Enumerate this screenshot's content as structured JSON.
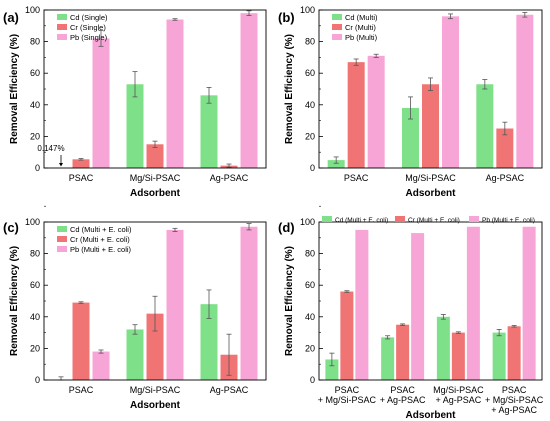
{
  "colors": {
    "cd": "#7fe08a",
    "cr": "#f07474",
    "pb": "#f7a5d6",
    "error": "#555555"
  },
  "chart_data": [
    {
      "panel": "(a)",
      "type": "bar",
      "xlabel": "Adsorbent",
      "ylabel": "Removal Efficiency (%)",
      "ylim": [
        0,
        100
      ],
      "yticks": [
        "0",
        "20",
        "40",
        "60",
        "80",
        "100"
      ],
      "categories": [
        "PSAC",
        "Mg/Si-PSAC",
        "Ag-PSAC"
      ],
      "series": [
        {
          "name": "Cd (Single)",
          "values": [
            0.147,
            53,
            46
          ],
          "errors": [
            0,
            8,
            5
          ]
        },
        {
          "name": "Cr (Single)",
          "values": [
            5.5,
            15,
            1.5
          ],
          "errors": [
            0.5,
            2,
            1
          ]
        },
        {
          "name": "Pb (Single)",
          "values": [
            82,
            94,
            98
          ],
          "errors": [
            5,
            0.5,
            1.5
          ]
        }
      ],
      "annotation": "0.147%"
    },
    {
      "panel": "(b)",
      "type": "bar",
      "xlabel": "Adsorbent",
      "ylabel": "Removal Efficiency (%)",
      "ylim": [
        0,
        100
      ],
      "yticks": [
        "0",
        "20",
        "40",
        "60",
        "80",
        "100"
      ],
      "categories": [
        "PSAC",
        "Mg/Si-PSAC",
        "Ag-PSAC"
      ],
      "series": [
        {
          "name": "Cd (Multi)",
          "values": [
            5,
            38,
            53
          ],
          "errors": [
            2,
            7,
            3
          ]
        },
        {
          "name": "Cr (Multi)",
          "values": [
            67,
            53,
            25
          ],
          "errors": [
            2,
            4,
            4
          ]
        },
        {
          "name": "Pb (Multi)",
          "values": [
            71,
            96,
            97
          ],
          "errors": [
            1,
            1.5,
            1.5
          ]
        }
      ]
    },
    {
      "panel": "(c)",
      "type": "bar",
      "xlabel": "Adsorbent",
      "ylabel": "Removal Efficiency (%)",
      "ylim": [
        0,
        100
      ],
      "yticks": [
        "0",
        "20",
        "40",
        "60",
        "80",
        "100"
      ],
      "categories": [
        "PSAC",
        "Mg/Si-PSAC",
        "Ag-PSAC"
      ],
      "series": [
        {
          "name": "Cd (Multi + E. coli)",
          "values": [
            0,
            32,
            48
          ],
          "errors": [
            2,
            3,
            9
          ]
        },
        {
          "name": "Cr (Multi + E. coli)",
          "values": [
            49,
            42,
            16
          ],
          "errors": [
            0.5,
            11,
            13
          ]
        },
        {
          "name": "Pb (Multi + E. coli)",
          "values": [
            18,
            95,
            97
          ],
          "errors": [
            1,
            1,
            2
          ]
        }
      ]
    },
    {
      "panel": "(d)",
      "type": "bar",
      "xlabel": "Adsorbent",
      "ylabel": "Removal Efficiency (%)",
      "ylim": [
        0,
        100
      ],
      "yticks": [
        "0",
        "20",
        "40",
        "60",
        "80",
        "100"
      ],
      "categories": [
        "PSAC\n+ Mg/Si-PSAC",
        "PSAC\n+ Ag-PSAC",
        "Mg/Si-PSAC\n+ Ag-PSAC",
        "PSAC\n+ Mg/Si-PSAC\n+ Ag-PSAC"
      ],
      "series": [
        {
          "name": "Cd (Multi + E. coli)",
          "values": [
            13,
            27,
            40,
            30
          ],
          "errors": [
            4,
            1,
            1.5,
            2
          ]
        },
        {
          "name": "Cr (Multi + E. coli)",
          "values": [
            56,
            35,
            30,
            34
          ],
          "errors": [
            0.5,
            0.5,
            0.5,
            0.5
          ]
        },
        {
          "name": "Pb (Multi + E. coli)",
          "values": [
            95,
            93,
            97,
            97
          ],
          "errors": [
            0,
            0,
            0,
            0
          ]
        }
      ]
    }
  ]
}
